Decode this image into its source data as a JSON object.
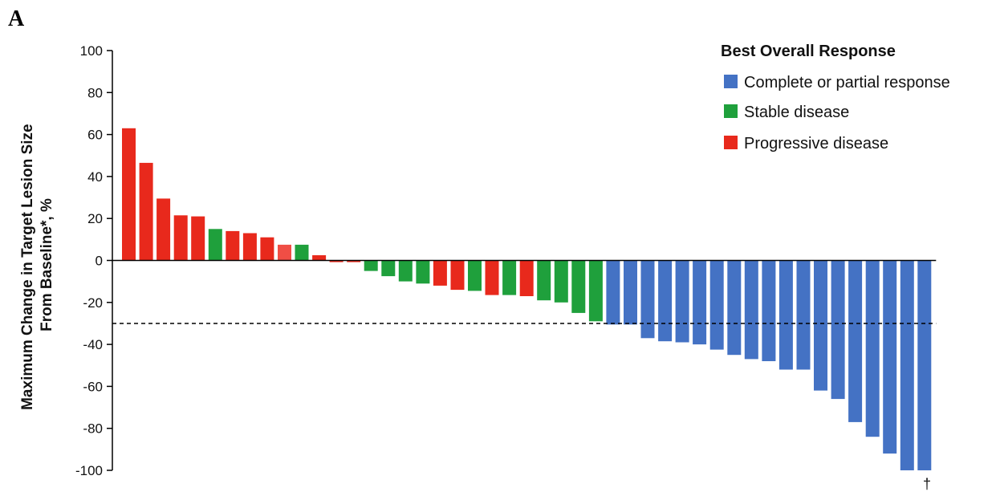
{
  "panel_label": "A",
  "chart_data": {
    "type": "bar",
    "ylabel_lines": [
      "Maximum Change in Target Lesion Size",
      "From Baseline*, %"
    ],
    "ylim": [
      -100,
      100
    ],
    "yticks": [
      100,
      80,
      60,
      40,
      20,
      0,
      -20,
      -40,
      -60,
      -80,
      -100
    ],
    "reference_line": -30,
    "legend": {
      "title": "Best Overall Response",
      "placement": "top-right",
      "entries": [
        {
          "key": "response",
          "label": "Complete or partial response",
          "color": "#4472C4"
        },
        {
          "key": "stable",
          "label": "Stable disease",
          "color": "#1FA03C"
        },
        {
          "key": "progressive",
          "label": "Progressive disease",
          "color": "#E8291C"
        }
      ]
    },
    "bars": [
      {
        "value": 63,
        "category": "progressive"
      },
      {
        "value": 46.5,
        "category": "progressive"
      },
      {
        "value": 29.5,
        "category": "progressive"
      },
      {
        "value": 21.5,
        "category": "progressive"
      },
      {
        "value": 21,
        "category": "progressive"
      },
      {
        "value": 15,
        "category": "stable"
      },
      {
        "value": 14,
        "category": "progressive"
      },
      {
        "value": 13,
        "category": "progressive"
      },
      {
        "value": 11,
        "category": "progressive"
      },
      {
        "value": 7.5,
        "category": "progressive",
        "color": "#F04E45"
      },
      {
        "value": 7.5,
        "category": "stable"
      },
      {
        "value": 2.5,
        "category": "progressive"
      },
      {
        "value": -0.8,
        "category": "progressive"
      },
      {
        "value": -0.8,
        "category": "progressive"
      },
      {
        "value": -5,
        "category": "stable"
      },
      {
        "value": -7.5,
        "category": "stable"
      },
      {
        "value": -10,
        "category": "stable"
      },
      {
        "value": -11,
        "category": "stable"
      },
      {
        "value": -12,
        "category": "progressive"
      },
      {
        "value": -14,
        "category": "progressive"
      },
      {
        "value": -14.5,
        "category": "stable"
      },
      {
        "value": -16.5,
        "category": "progressive"
      },
      {
        "value": -16.5,
        "category": "stable"
      },
      {
        "value": -17,
        "category": "progressive"
      },
      {
        "value": -19,
        "category": "stable"
      },
      {
        "value": -20,
        "category": "stable"
      },
      {
        "value": -25,
        "category": "stable"
      },
      {
        "value": -29,
        "category": "stable"
      },
      {
        "value": -30.5,
        "category": "response"
      },
      {
        "value": -30.5,
        "category": "response"
      },
      {
        "value": -37,
        "category": "response"
      },
      {
        "value": -38.5,
        "category": "response"
      },
      {
        "value": -39,
        "category": "response"
      },
      {
        "value": -40,
        "category": "response"
      },
      {
        "value": -42.5,
        "category": "response"
      },
      {
        "value": -45,
        "category": "response"
      },
      {
        "value": -47,
        "category": "response"
      },
      {
        "value": -48,
        "category": "response"
      },
      {
        "value": -52,
        "category": "response"
      },
      {
        "value": -52,
        "category": "response"
      },
      {
        "value": -62,
        "category": "response"
      },
      {
        "value": -66,
        "category": "response"
      },
      {
        "value": -77,
        "category": "response"
      },
      {
        "value": -84,
        "category": "response"
      },
      {
        "value": -92,
        "category": "response"
      },
      {
        "value": -100,
        "category": "response"
      },
      {
        "value": -100,
        "category": "response"
      }
    ],
    "footnote_mark": "†"
  }
}
